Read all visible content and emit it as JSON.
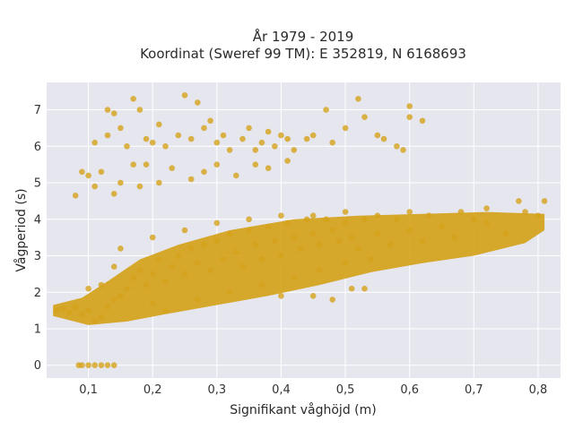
{
  "chart_data": {
    "type": "scatter",
    "title": "År 1979 - 2019",
    "subtitle": "Koordinat (Sweref 99 TM): E 352819, N 6168693",
    "xlabel": "Signifikant våghöjd (m)",
    "ylabel": "Vågperiod (s)",
    "xlim": [
      0.035,
      0.835
    ],
    "ylim": [
      -0.35,
      7.75
    ],
    "x_ticks": [
      0.1,
      0.2,
      0.3,
      0.4,
      0.5,
      0.6,
      0.7,
      0.8
    ],
    "x_tick_labels": [
      "0,1",
      "0,2",
      "0,3",
      "0,4",
      "0,5",
      "0,6",
      "0,7",
      "0,8"
    ],
    "y_ticks": [
      0,
      1,
      2,
      3,
      4,
      5,
      6,
      7
    ],
    "y_tick_labels": [
      "0",
      "1",
      "2",
      "3",
      "4",
      "5",
      "6",
      "7"
    ],
    "grid": true,
    "legend": "none",
    "colors": {
      "marker": "#D4A21A",
      "plot_bg": "#E6E6EF",
      "grid": "#FFFFFF",
      "page_bg": "#FFFFFF"
    },
    "series": [
      {
        "points": [
          [
            0.05,
            1.5
          ],
          [
            0.06,
            1.55
          ],
          [
            0.07,
            1.45
          ],
          [
            0.08,
            1.6
          ],
          [
            0.09,
            1.4
          ],
          [
            0.1,
            1.5
          ],
          [
            0.11,
            1.2
          ],
          [
            0.12,
            1.3
          ],
          [
            0.13,
            1.6
          ],
          [
            0.14,
            1.8
          ],
          [
            0.1,
            2.1
          ],
          [
            0.12,
            2.2
          ],
          [
            0.15,
            1.9
          ],
          [
            0.16,
            2.1
          ],
          [
            0.17,
            2.4
          ],
          [
            0.18,
            2.6
          ],
          [
            0.19,
            2.2
          ],
          [
            0.2,
            1.7
          ],
          [
            0.2,
            2.5
          ],
          [
            0.21,
            2.9
          ],
          [
            0.22,
            2.3
          ],
          [
            0.23,
            2.7
          ],
          [
            0.24,
            3.0
          ],
          [
            0.25,
            2.5
          ],
          [
            0.26,
            3.2
          ],
          [
            0.27,
            2.8
          ],
          [
            0.28,
            3.3
          ],
          [
            0.29,
            2.6
          ],
          [
            0.3,
            3.4
          ],
          [
            0.31,
            2.9
          ],
          [
            0.32,
            3.6
          ],
          [
            0.33,
            3.1
          ],
          [
            0.34,
            2.7
          ],
          [
            0.35,
            3.7
          ],
          [
            0.36,
            3.3
          ],
          [
            0.37,
            2.9
          ],
          [
            0.38,
            3.8
          ],
          [
            0.39,
            3.4
          ],
          [
            0.4,
            3.0
          ],
          [
            0.41,
            3.9
          ],
          [
            0.42,
            3.5
          ],
          [
            0.43,
            3.2
          ],
          [
            0.44,
            4.0
          ],
          [
            0.45,
            3.6
          ],
          [
            0.46,
            3.3
          ],
          [
            0.47,
            4.0
          ],
          [
            0.48,
            3.7
          ],
          [
            0.49,
            3.4
          ],
          [
            0.5,
            3.9
          ],
          [
            0.51,
            3.5
          ],
          [
            0.52,
            3.2
          ],
          [
            0.53,
            4.0
          ],
          [
            0.55,
            3.6
          ],
          [
            0.57,
            3.3
          ],
          [
            0.58,
            4.0
          ],
          [
            0.6,
            3.7
          ],
          [
            0.62,
            3.4
          ],
          [
            0.63,
            4.1
          ],
          [
            0.65,
            3.8
          ],
          [
            0.67,
            3.5
          ],
          [
            0.7,
            4.0
          ],
          [
            0.72,
            3.9
          ],
          [
            0.75,
            3.6
          ],
          [
            0.78,
            4.2
          ],
          [
            0.8,
            4.1
          ],
          [
            0.81,
            4.5
          ],
          [
            0.77,
            4.5
          ],
          [
            0.72,
            4.3
          ],
          [
            0.68,
            4.2
          ],
          [
            0.6,
            4.2
          ],
          [
            0.55,
            4.1
          ],
          [
            0.5,
            4.2
          ],
          [
            0.45,
            4.1
          ],
          [
            0.4,
            4.1
          ],
          [
            0.35,
            4.0
          ],
          [
            0.3,
            3.9
          ],
          [
            0.25,
            3.7
          ],
          [
            0.2,
            3.5
          ],
          [
            0.15,
            3.2
          ],
          [
            0.14,
            2.7
          ],
          [
            0.22,
            1.5
          ],
          [
            0.27,
            1.8
          ],
          [
            0.32,
            2.0
          ],
          [
            0.37,
            2.2
          ],
          [
            0.42,
            2.4
          ],
          [
            0.46,
            2.6
          ],
          [
            0.5,
            2.8
          ],
          [
            0.54,
            2.9
          ],
          [
            0.48,
            1.8
          ],
          [
            0.51,
            2.1
          ],
          [
            0.53,
            2.1
          ],
          [
            0.45,
            1.9
          ],
          [
            0.4,
            1.9
          ],
          [
            0.085,
            0
          ],
          [
            0.09,
            0
          ],
          [
            0.1,
            0
          ],
          [
            0.11,
            0
          ],
          [
            0.12,
            0
          ],
          [
            0.13,
            0
          ],
          [
            0.14,
            0
          ],
          [
            0.08,
            4.65
          ],
          [
            0.09,
            5.3
          ],
          [
            0.1,
            5.2
          ],
          [
            0.11,
            4.9
          ],
          [
            0.12,
            5.3
          ],
          [
            0.14,
            4.7
          ],
          [
            0.15,
            5.0
          ],
          [
            0.17,
            5.5
          ],
          [
            0.18,
            4.9
          ],
          [
            0.19,
            5.5
          ],
          [
            0.21,
            5.0
          ],
          [
            0.23,
            5.4
          ],
          [
            0.26,
            5.1
          ],
          [
            0.28,
            5.3
          ],
          [
            0.3,
            5.5
          ],
          [
            0.33,
            5.2
          ],
          [
            0.36,
            5.5
          ],
          [
            0.38,
            5.4
          ],
          [
            0.41,
            5.6
          ],
          [
            0.13,
            7.0
          ],
          [
            0.14,
            6.9
          ],
          [
            0.17,
            7.3
          ],
          [
            0.18,
            7.0
          ],
          [
            0.11,
            6.1
          ],
          [
            0.13,
            6.3
          ],
          [
            0.15,
            6.5
          ],
          [
            0.16,
            6.0
          ],
          [
            0.19,
            6.2
          ],
          [
            0.2,
            6.1
          ],
          [
            0.21,
            6.6
          ],
          [
            0.22,
            6.0
          ],
          [
            0.24,
            6.3
          ],
          [
            0.25,
            7.4
          ],
          [
            0.26,
            6.2
          ],
          [
            0.27,
            7.2
          ],
          [
            0.28,
            6.5
          ],
          [
            0.29,
            6.7
          ],
          [
            0.3,
            6.1
          ],
          [
            0.31,
            6.3
          ],
          [
            0.32,
            5.9
          ],
          [
            0.34,
            6.2
          ],
          [
            0.35,
            6.5
          ],
          [
            0.36,
            5.9
          ],
          [
            0.37,
            6.1
          ],
          [
            0.38,
            6.4
          ],
          [
            0.39,
            6.0
          ],
          [
            0.4,
            6.3
          ],
          [
            0.41,
            6.2
          ],
          [
            0.42,
            5.9
          ],
          [
            0.44,
            6.2
          ],
          [
            0.45,
            6.3
          ],
          [
            0.47,
            7.0
          ],
          [
            0.48,
            6.1
          ],
          [
            0.5,
            6.5
          ],
          [
            0.52,
            7.3
          ],
          [
            0.53,
            6.8
          ],
          [
            0.55,
            6.3
          ],
          [
            0.56,
            6.2
          ],
          [
            0.58,
            6.0
          ],
          [
            0.6,
            7.1
          ],
          [
            0.6,
            6.8
          ],
          [
            0.62,
            6.7
          ],
          [
            0.59,
            5.9
          ]
        ]
      }
    ]
  }
}
